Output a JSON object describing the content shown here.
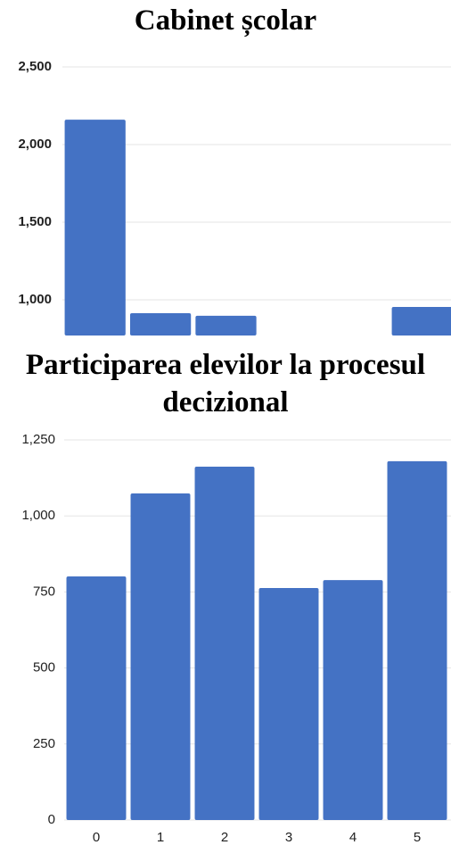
{
  "chart_data": [
    {
      "type": "bar",
      "title": "Cabinet școlar",
      "values": [
        2160,
        914,
        897,
        null,
        null,
        954
      ],
      "color": "#4472c4",
      "ylim": [
        770,
        2500
      ],
      "yticks": [
        {
          "value": 1000,
          "label": "1,000"
        },
        {
          "value": 1500,
          "label": "1,500"
        },
        {
          "value": 2000,
          "label": "2,000"
        },
        {
          "value": 2500,
          "label": "2,500"
        }
      ],
      "grid": true
    },
    {
      "type": "bar",
      "title": "Participarea elevilor la procesul decizional",
      "categories": [
        "0",
        "1",
        "2",
        "3",
        "4",
        "5"
      ],
      "values": [
        801,
        1074,
        1162,
        763,
        789,
        1180
      ],
      "color": "#4472c4",
      "ylim": [
        0,
        1250
      ],
      "yticks": [
        0,
        250,
        500,
        750,
        {
          "value": 1000,
          "label": "1,000"
        },
        {
          "value": 1250,
          "label": "1,250"
        }
      ],
      "grid": true
    }
  ]
}
